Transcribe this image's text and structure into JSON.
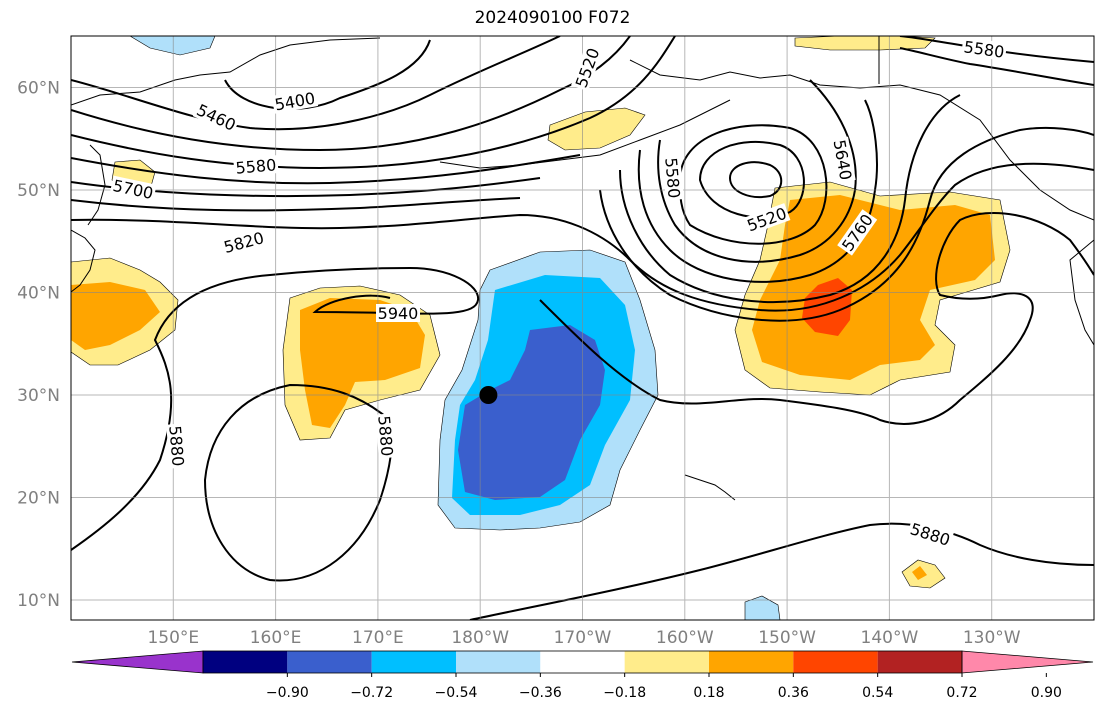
{
  "title": "2024090100 F072",
  "map": {
    "lat_ticks": [
      {
        "lat": 60,
        "label": "60°N"
      },
      {
        "lat": 50,
        "label": "50°N"
      },
      {
        "lat": 40,
        "label": "40°N"
      },
      {
        "lat": 30,
        "label": "30°N"
      },
      {
        "lat": 20,
        "label": "20°N"
      },
      {
        "lat": 10,
        "label": "10°N"
      }
    ],
    "lon_ticks": [
      {
        "lon": 150,
        "label": "150°E"
      },
      {
        "lon": 160,
        "label": "160°E"
      },
      {
        "lon": 170,
        "label": "170°E"
      },
      {
        "lon": 180,
        "label": "180°W"
      },
      {
        "lon": 190,
        "label": "170°W"
      },
      {
        "lon": 200,
        "label": "160°W"
      },
      {
        "lon": 210,
        "label": "150°W"
      },
      {
        "lon": 220,
        "label": "140°W"
      },
      {
        "lon": 230,
        "label": "130°W"
      }
    ],
    "contour_labels": [
      "5460",
      "5400",
      "5520",
      "5580",
      "5580",
      "5700",
      "5580",
      "5820",
      "5640",
      "5520",
      "5760",
      "5940",
      "5880",
      "5880",
      "5880"
    ],
    "marker": {
      "lat": 30,
      "lon": 180.8
    }
  },
  "colorbar": {
    "colors": [
      "#9933cc",
      "#000080",
      "#3a5fcd",
      "#00bfff",
      "#b0e0fa",
      "#ffffff",
      "#ffec8b",
      "#ffa500",
      "#ff4500",
      "#b22222",
      "#ff88aa"
    ],
    "tick_labels": [
      "−0.90",
      "−0.72",
      "−0.54",
      "−0.36",
      "−0.18",
      "0.18",
      "0.36",
      "0.54",
      "0.72",
      "0.90"
    ]
  }
}
